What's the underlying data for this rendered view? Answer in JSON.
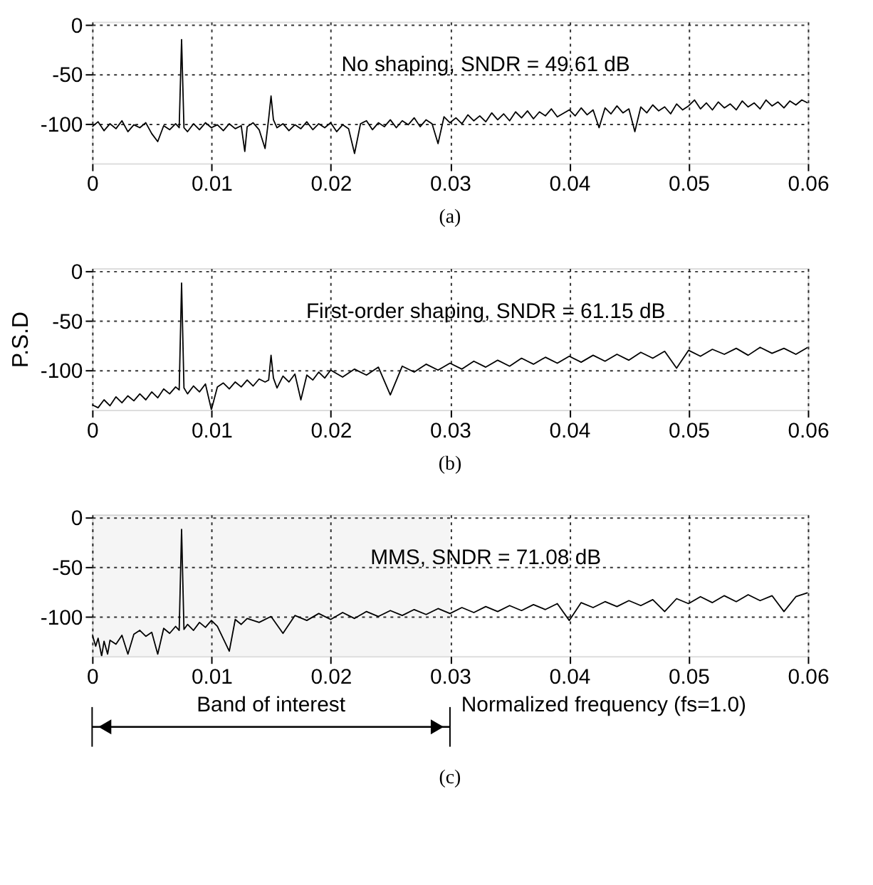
{
  "chart_data": [
    {
      "type": "line",
      "xlim": [
        0,
        0.06
      ],
      "xticks": [
        0,
        0.01,
        0.02,
        0.03,
        0.04,
        0.05,
        0.06
      ],
      "ylim": [
        -140,
        3
      ],
      "yticks": [
        0,
        -50,
        -100
      ],
      "grid": true,
      "annotations": [
        "No shaping, SNDR = 49.61 dB",
        "(a)"
      ],
      "series": [
        {
          "color": "#000000",
          "x": [
            0,
            0.0005,
            0.001,
            0.0015,
            0.002,
            0.0025,
            0.003,
            0.0035,
            0.004,
            0.0045,
            0.005,
            0.0055,
            0.006,
            0.0065,
            0.007,
            0.0073,
            0.0075,
            0.0077,
            0.008,
            0.0085,
            0.009,
            0.0095,
            0.01,
            0.0105,
            0.011,
            0.0115,
            0.012,
            0.0125,
            0.0128,
            0.013,
            0.0135,
            0.014,
            0.0145,
            0.0148,
            0.015,
            0.0152,
            0.0155,
            0.016,
            0.0165,
            0.017,
            0.0175,
            0.018,
            0.0185,
            0.019,
            0.0195,
            0.02,
            0.0205,
            0.021,
            0.0215,
            0.022,
            0.0225,
            0.023,
            0.0235,
            0.024,
            0.0245,
            0.025,
            0.0255,
            0.026,
            0.0265,
            0.027,
            0.0275,
            0.028,
            0.0285,
            0.029,
            0.0295,
            0.03,
            0.0305,
            0.031,
            0.0315,
            0.032,
            0.0325,
            0.033,
            0.0335,
            0.034,
            0.0345,
            0.035,
            0.0355,
            0.036,
            0.0365,
            0.037,
            0.0375,
            0.038,
            0.0385,
            0.039,
            0.04,
            0.0405,
            0.041,
            0.0415,
            0.042,
            0.0425,
            0.043,
            0.0435,
            0.044,
            0.0445,
            0.045,
            0.0455,
            0.046,
            0.0465,
            0.047,
            0.0475,
            0.048,
            0.0485,
            0.049,
            0.0495,
            0.05,
            0.0505,
            0.051,
            0.0515,
            0.052,
            0.0525,
            0.053,
            0.0535,
            0.054,
            0.0545,
            0.055,
            0.0555,
            0.056,
            0.0565,
            0.057,
            0.0575,
            0.058,
            0.0585,
            0.059,
            0.0595,
            0.06
          ],
          "values": [
            -103,
            -98,
            -107,
            -100,
            -105,
            -97,
            -108,
            -101,
            -104,
            -99,
            -110,
            -118,
            -102,
            -106,
            -100,
            -104,
            -15,
            -104,
            -108,
            -100,
            -106,
            -99,
            -104,
            -101,
            -107,
            -100,
            -105,
            -102,
            -128,
            -103,
            -99,
            -106,
            -125,
            -95,
            -72,
            -96,
            -104,
            -100,
            -107,
            -101,
            -105,
            -98,
            -106,
            -100,
            -104,
            -99,
            -108,
            -101,
            -105,
            -130,
            -100,
            -97,
            -106,
            -99,
            -103,
            -96,
            -104,
            -97,
            -101,
            -94,
            -103,
            -96,
            -100,
            -120,
            -93,
            -99,
            -94,
            -100,
            -91,
            -97,
            -92,
            -98,
            -89,
            -96,
            -90,
            -97,
            -88,
            -94,
            -87,
            -95,
            -88,
            -92,
            -85,
            -93,
            -86,
            -92,
            -84,
            -91,
            -86,
            -104,
            -84,
            -90,
            -82,
            -89,
            -85,
            -108,
            -83,
            -89,
            -81,
            -87,
            -83,
            -90,
            -80,
            -86,
            -82,
            -76,
            -85,
            -79,
            -86,
            -78,
            -84,
            -80,
            -86,
            -77,
            -83,
            -79,
            -85,
            -76,
            -82,
            -78,
            -84,
            -77,
            -81,
            -76,
            -79
          ]
        }
      ]
    },
    {
      "type": "line",
      "xlim": [
        0,
        0.06
      ],
      "xticks": [
        0,
        0.01,
        0.02,
        0.03,
        0.04,
        0.05,
        0.06
      ],
      "ylim": [
        -140,
        3
      ],
      "yticks": [
        0,
        -50,
        -100
      ],
      "grid": true,
      "ylabel": "P.S.D",
      "annotations": [
        "First-order shaping, SNDR = 61.15 dB",
        "(b)"
      ],
      "series": [
        {
          "color": "#000000",
          "x": [
            0,
            0.0005,
            0.001,
            0.0015,
            0.002,
            0.0025,
            0.003,
            0.0035,
            0.004,
            0.0045,
            0.005,
            0.0055,
            0.006,
            0.0065,
            0.007,
            0.0073,
            0.0075,
            0.0077,
            0.008,
            0.0085,
            0.009,
            0.0095,
            0.01,
            0.0105,
            0.011,
            0.0115,
            0.012,
            0.0125,
            0.013,
            0.0135,
            0.014,
            0.0145,
            0.0148,
            0.015,
            0.0152,
            0.0155,
            0.016,
            0.0165,
            0.017,
            0.0175,
            0.018,
            0.0185,
            0.019,
            0.0195,
            0.02,
            0.021,
            0.022,
            0.023,
            0.024,
            0.025,
            0.026,
            0.027,
            0.028,
            0.029,
            0.03,
            0.031,
            0.032,
            0.033,
            0.034,
            0.035,
            0.036,
            0.037,
            0.038,
            0.039,
            0.04,
            0.041,
            0.042,
            0.043,
            0.044,
            0.045,
            0.046,
            0.047,
            0.048,
            0.049,
            0.05,
            0.051,
            0.052,
            0.053,
            0.054,
            0.055,
            0.056,
            0.057,
            0.058,
            0.059,
            0.06
          ],
          "values": [
            -135,
            -138,
            -130,
            -136,
            -127,
            -133,
            -126,
            -131,
            -124,
            -130,
            -122,
            -128,
            -119,
            -124,
            -117,
            -120,
            -12,
            -118,
            -124,
            -116,
            -122,
            -114,
            -140,
            -117,
            -113,
            -119,
            -112,
            -117,
            -110,
            -116,
            -109,
            -112,
            -110,
            -85,
            -108,
            -118,
            -106,
            -112,
            -104,
            -130,
            -105,
            -110,
            -102,
            -108,
            -100,
            -107,
            -99,
            -105,
            -97,
            -125,
            -96,
            -102,
            -94,
            -100,
            -93,
            -99,
            -91,
            -97,
            -90,
            -96,
            -88,
            -94,
            -87,
            -93,
            -86,
            -92,
            -85,
            -91,
            -84,
            -90,
            -82,
            -88,
            -81,
            -98,
            -80,
            -86,
            -79,
            -84,
            -78,
            -85,
            -77,
            -83,
            -78,
            -84,
            -77
          ]
        }
      ]
    },
    {
      "type": "line",
      "xlim": [
        0,
        0.06
      ],
      "xticks": [
        0,
        0.01,
        0.02,
        0.03,
        0.04,
        0.05,
        0.06
      ],
      "ylim": [
        -140,
        3
      ],
      "yticks": [
        0,
        -50,
        -100
      ],
      "grid": true,
      "xlabel": "Normalized frequency (fs=1.0)",
      "annotations": [
        "MMS, SNDR = 71.08 dB",
        "(c)"
      ],
      "bands": [
        {
          "axis": "x",
          "from": 0,
          "to": 0.03,
          "label": "Band of interest"
        }
      ],
      "series": [
        {
          "color": "#000000",
          "x": [
            0,
            0.0003,
            0.0005,
            0.0008,
            0.001,
            0.0013,
            0.0015,
            0.002,
            0.0025,
            0.003,
            0.0035,
            0.004,
            0.0045,
            0.005,
            0.0055,
            0.006,
            0.0065,
            0.007,
            0.0073,
            0.0075,
            0.0077,
            0.008,
            0.0085,
            0.009,
            0.0095,
            0.01,
            0.0105,
            0.0115,
            0.012,
            0.0125,
            0.013,
            0.014,
            0.015,
            0.016,
            0.017,
            0.018,
            0.019,
            0.02,
            0.021,
            0.022,
            0.023,
            0.024,
            0.025,
            0.026,
            0.027,
            0.028,
            0.029,
            0.03,
            0.031,
            0.032,
            0.033,
            0.034,
            0.035,
            0.036,
            0.037,
            0.038,
            0.039,
            0.04,
            0.041,
            0.042,
            0.043,
            0.044,
            0.045,
            0.046,
            0.047,
            0.048,
            0.049,
            0.05,
            0.051,
            0.052,
            0.053,
            0.054,
            0.055,
            0.056,
            0.057,
            0.058,
            0.059,
            0.06
          ],
          "values": [
            -118,
            -130,
            -122,
            -140,
            -125,
            -138,
            -124,
            -128,
            -119,
            -138,
            -118,
            -114,
            -120,
            -116,
            -138,
            -112,
            -117,
            -110,
            -114,
            -12,
            -113,
            -108,
            -114,
            -106,
            -111,
            -104,
            -110,
            -135,
            -103,
            -108,
            -102,
            -106,
            -100,
            -117,
            -99,
            -104,
            -97,
            -103,
            -96,
            -102,
            -95,
            -100,
            -94,
            -99,
            -93,
            -98,
            -92,
            -97,
            -91,
            -96,
            -90,
            -95,
            -89,
            -94,
            -88,
            -93,
            -87,
            -104,
            -86,
            -91,
            -85,
            -90,
            -84,
            -89,
            -83,
            -95,
            -82,
            -87,
            -80,
            -86,
            -79,
            -85,
            -78,
            -84,
            -79,
            -95,
            -80,
            -76
          ]
        }
      ]
    }
  ]
}
